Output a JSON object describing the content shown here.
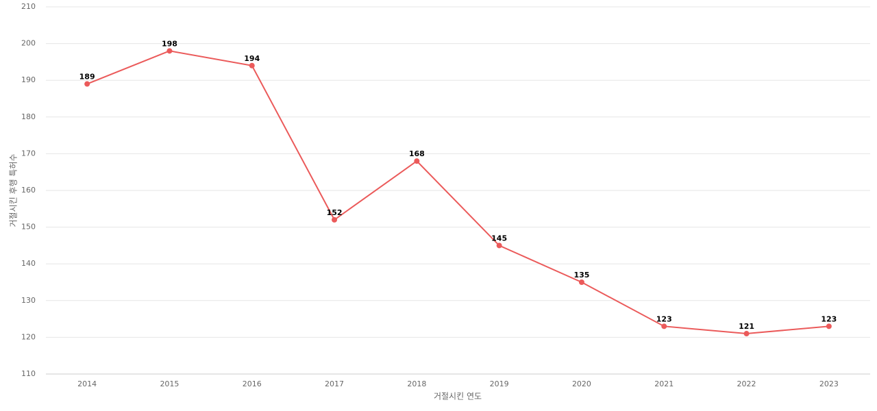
{
  "chart_data": {
    "type": "line",
    "categories": [
      "2014",
      "2015",
      "2016",
      "2017",
      "2018",
      "2019",
      "2020",
      "2021",
      "2022",
      "2023"
    ],
    "series": [
      {
        "color": "#eb5a5a",
        "values": [
          189,
          198,
          194,
          152,
          168,
          145,
          135,
          123,
          121,
          123
        ]
      }
    ],
    "xlabel": "거절시킨 연도",
    "ylabel": "거절시킨 후행 특허수",
    "ylim": [
      110,
      210
    ],
    "yticks": [
      110,
      120,
      130,
      140,
      150,
      160,
      170,
      180,
      190,
      200,
      210
    ],
    "grid": true,
    "data_labels": true
  }
}
